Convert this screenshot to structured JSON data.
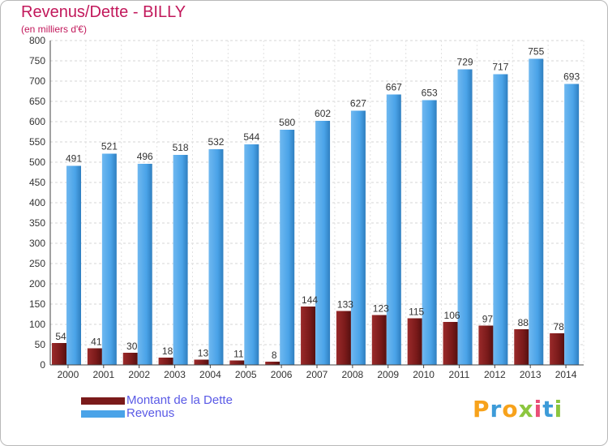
{
  "header": {
    "title": "Revenus/Dette - BILLY",
    "subtitle": "(en milliers d'€)"
  },
  "colors": {
    "title": "#c2185b",
    "debt": "#7a1a1a",
    "revenue": "#4aa3e8",
    "legend_text": "#5a5ae6"
  },
  "chart_data": {
    "type": "bar",
    "title": "Revenus/Dette - BILLY",
    "ylabel": "(en milliers d'€)",
    "xlabel": "",
    "ylim": [
      0,
      800
    ],
    "yticks": [
      0,
      50,
      100,
      150,
      200,
      250,
      300,
      350,
      400,
      450,
      500,
      550,
      600,
      650,
      700,
      750,
      800
    ],
    "grid": true,
    "legend_position": "bottom-left",
    "categories": [
      "2000",
      "2001",
      "2002",
      "2003",
      "2004",
      "2005",
      "2006",
      "2007",
      "2008",
      "2009",
      "2010",
      "2011",
      "2012",
      "2013",
      "2014"
    ],
    "series": [
      {
        "name": "Montant de la Dette",
        "color": "#7a1a1a",
        "values": [
          54,
          41,
          30,
          18,
          13,
          11,
          8,
          144,
          133,
          123,
          115,
          106,
          97,
          88,
          78
        ]
      },
      {
        "name": "Revenus",
        "color": "#4aa3e8",
        "values": [
          491,
          521,
          496,
          518,
          532,
          544,
          580,
          602,
          627,
          667,
          653,
          729,
          717,
          755,
          693
        ]
      }
    ]
  },
  "logo": {
    "letters": [
      "P",
      "r",
      "o",
      "x",
      "i",
      "t",
      "i"
    ],
    "colors": [
      "#f7a21b",
      "#3d9bd8",
      "#f7a21b",
      "#8cc63f",
      "#e94e77",
      "#3d9bd8",
      "#8cc63f"
    ]
  }
}
